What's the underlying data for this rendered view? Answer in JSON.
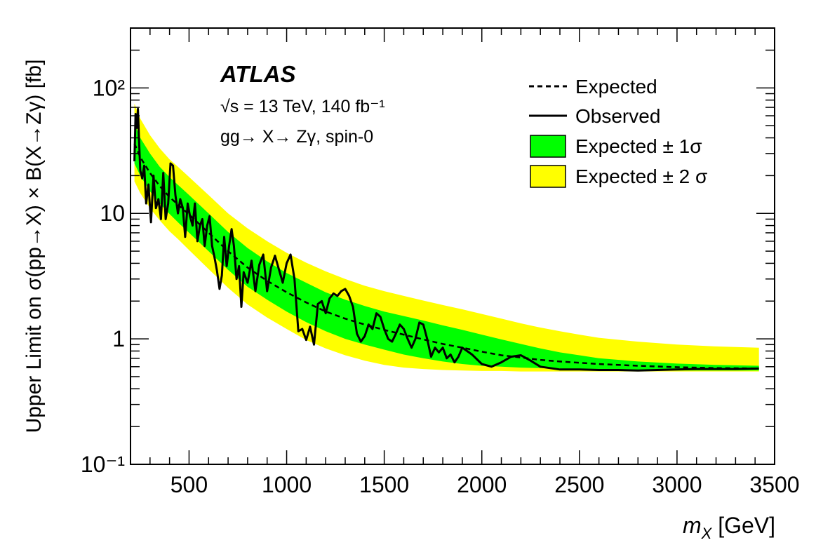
{
  "chart_data": {
    "type": "line",
    "title": "",
    "xlabel": "m_X [GeV]",
    "ylabel": "Upper Limit on σ(pp→X) × B(X→Zγ) [fb]",
    "xlim": [
      200,
      3500
    ],
    "ylim": [
      0.1,
      300
    ],
    "yscale": "log",
    "grid": false,
    "legend_position": "top-right",
    "xticks": [
      500,
      1000,
      1500,
      2000,
      2500,
      3000,
      3500
    ],
    "yticks": [
      {
        "value": 0.1,
        "label": "10⁻¹"
      },
      {
        "value": 1,
        "label": "1"
      },
      {
        "value": 10,
        "label": "10"
      },
      {
        "value": 100,
        "label": "10²"
      }
    ],
    "annotation": {
      "experiment": "ATLAS",
      "energy_lumi": "√s = 13 TeV, 140 fb⁻¹",
      "process": "gg→ X→ Zγ, spin-0"
    },
    "legend": [
      {
        "label": "Expected",
        "kind": "dashed-line",
        "color": "#000000"
      },
      {
        "label": "Observed",
        "kind": "solid-line",
        "color": "#000000"
      },
      {
        "label": "Expected ± 1σ",
        "kind": "box",
        "color": "#00ff00"
      },
      {
        "label": "Expected ± 2 σ",
        "kind": "box",
        "color": "#ffff00"
      }
    ],
    "series": [
      {
        "name": "Expected",
        "x": [
          220,
          250,
          300,
          350,
          400,
          450,
          500,
          600,
          700,
          800,
          900,
          1000,
          1100,
          1200,
          1300,
          1400,
          1500,
          1600,
          1700,
          1800,
          1900,
          2000,
          2100,
          2200,
          2300,
          2400,
          2500,
          2600,
          2800,
          3000,
          3200,
          3420
        ],
        "y": [
          36,
          28,
          21,
          16.5,
          13.5,
          11.5,
          9.8,
          7.0,
          5.0,
          3.7,
          2.9,
          2.35,
          1.95,
          1.65,
          1.45,
          1.3,
          1.18,
          1.08,
          0.99,
          0.91,
          0.85,
          0.79,
          0.74,
          0.71,
          0.68,
          0.66,
          0.645,
          0.63,
          0.61,
          0.595,
          0.585,
          0.58
        ]
      },
      {
        "name": "Expected ± 1σ",
        "x": [
          220,
          250,
          300,
          350,
          400,
          450,
          500,
          600,
          700,
          800,
          900,
          1000,
          1100,
          1200,
          1300,
          1400,
          1500,
          1600,
          1700,
          1800,
          1900,
          2000,
          2100,
          2200,
          2300,
          2400,
          2500,
          2600,
          2800,
          3000,
          3200,
          3420
        ],
        "low": [
          25,
          20,
          15,
          12,
          9.9,
          8.3,
          7.0,
          5.0,
          3.55,
          2.6,
          2.05,
          1.65,
          1.36,
          1.15,
          1.0,
          0.9,
          0.82,
          0.75,
          0.7,
          0.66,
          0.63,
          0.61,
          0.6,
          0.59,
          0.585,
          0.58,
          0.575,
          0.57,
          0.565,
          0.56,
          0.56,
          0.56
        ],
        "high": [
          52,
          40,
          30,
          23.5,
          19.5,
          16.5,
          14,
          10,
          7.1,
          5.3,
          4.15,
          3.35,
          2.8,
          2.35,
          2.05,
          1.83,
          1.65,
          1.52,
          1.4,
          1.28,
          1.18,
          1.08,
          0.99,
          0.91,
          0.84,
          0.78,
          0.74,
          0.7,
          0.66,
          0.635,
          0.62,
          0.61
        ]
      },
      {
        "name": "Expected ± 2σ",
        "x": [
          220,
          250,
          300,
          350,
          400,
          450,
          500,
          600,
          700,
          800,
          900,
          1000,
          1100,
          1200,
          1300,
          1400,
          1500,
          1600,
          1700,
          1800,
          1900,
          2000,
          2100,
          2200,
          2300,
          2400,
          2500,
          2600,
          2800,
          3000,
          3200,
          3420
        ],
        "low": [
          18,
          14.5,
          11,
          8.8,
          7.2,
          6.1,
          5.1,
          3.6,
          2.55,
          1.88,
          1.48,
          1.2,
          0.98,
          0.84,
          0.74,
          0.67,
          0.62,
          0.59,
          0.575,
          0.565,
          0.56,
          0.555,
          0.555,
          0.55,
          0.55,
          0.55,
          0.55,
          0.55,
          0.55,
          0.55,
          0.55,
          0.55
        ],
        "high": [
          75,
          57,
          42,
          33,
          27,
          23,
          19.5,
          14,
          10,
          7.6,
          6.0,
          4.85,
          4.05,
          3.45,
          3.0,
          2.65,
          2.4,
          2.2,
          2.02,
          1.86,
          1.72,
          1.58,
          1.45,
          1.33,
          1.23,
          1.15,
          1.08,
          1.02,
          0.95,
          0.9,
          0.87,
          0.85
        ]
      },
      {
        "name": "Observed",
        "x": [
          220,
          226,
          232,
          238,
          244,
          250,
          260,
          270,
          280,
          292,
          305,
          318,
          330,
          343,
          356,
          368,
          380,
          393,
          405,
          418,
          430,
          443,
          455,
          468,
          480,
          493,
          505,
          518,
          530,
          543,
          556,
          568,
          580,
          593,
          605,
          618,
          630,
          643,
          656,
          668,
          680,
          693,
          705,
          718,
          730,
          743,
          756,
          768,
          780,
          800,
          820,
          840,
          860,
          880,
          900,
          920,
          940,
          960,
          980,
          1000,
          1020,
          1040,
          1060,
          1080,
          1100,
          1120,
          1140,
          1160,
          1180,
          1200,
          1220,
          1240,
          1260,
          1280,
          1300,
          1320,
          1340,
          1360,
          1380,
          1400,
          1420,
          1440,
          1460,
          1480,
          1500,
          1520,
          1540,
          1560,
          1580,
          1600,
          1620,
          1640,
          1660,
          1680,
          1700,
          1720,
          1740,
          1760,
          1780,
          1800,
          1820,
          1840,
          1860,
          1880,
          1900,
          1950,
          2000,
          2050,
          2100,
          2150,
          2200,
          2250,
          2300,
          2400,
          2500,
          2600,
          2700,
          2800,
          2900,
          3000,
          3100,
          3200,
          3300,
          3420
        ],
        "y": [
          26,
          62,
          48,
          68,
          38,
          22,
          19,
          24,
          12,
          17,
          8.5,
          20,
          11,
          13,
          9,
          21,
          9,
          12,
          25,
          24,
          14,
          10,
          13,
          11,
          6.5,
          12,
          9.5,
          8,
          12,
          6,
          8,
          9,
          5.5,
          8,
          9.5,
          5.5,
          4.5,
          3.5,
          2.5,
          3.2,
          6.5,
          3.8,
          5.5,
          7.5,
          5.5,
          3.0,
          3.8,
          1.8,
          3.4,
          2.8,
          4.2,
          2.4,
          3.9,
          4.7,
          2.4,
          3.7,
          4.6,
          3.6,
          2.8,
          4.0,
          4.7,
          3.0,
          1.15,
          1.2,
          0.98,
          1.25,
          0.9,
          1.9,
          2.0,
          1.6,
          2.1,
          2.3,
          2.2,
          2.4,
          2.5,
          2.2,
          1.8,
          1.1,
          0.95,
          1.05,
          1.3,
          1.2,
          1.6,
          1.5,
          1.2,
          1.0,
          0.95,
          1.1,
          1.3,
          1.2,
          1.0,
          0.85,
          1.0,
          1.35,
          1.3,
          1.0,
          0.72,
          0.85,
          0.78,
          0.85,
          0.7,
          0.75,
          0.65,
          0.72,
          0.85,
          0.75,
          0.63,
          0.6,
          0.65,
          0.72,
          0.74,
          0.67,
          0.6,
          0.57,
          0.57,
          0.565,
          0.565,
          0.56,
          0.565,
          0.57,
          0.575,
          0.575,
          0.575,
          0.58
        ]
      }
    ]
  }
}
